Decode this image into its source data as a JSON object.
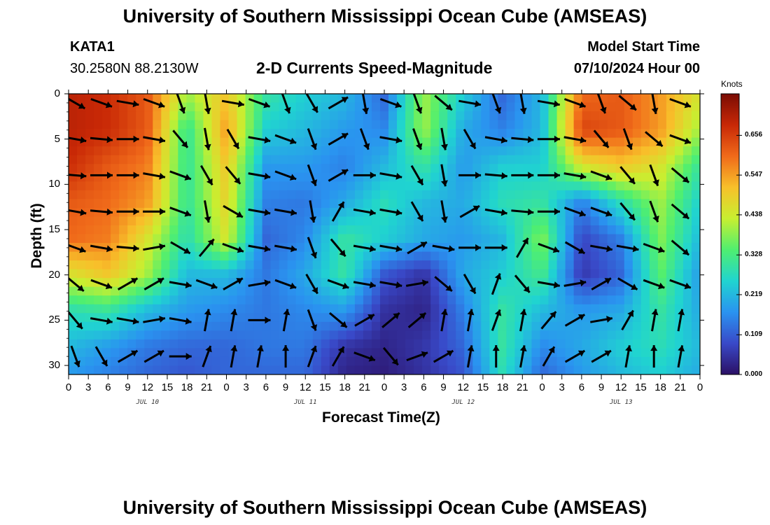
{
  "header": {
    "title": "University of Southern Mississippi Ocean Cube (AMSEAS)",
    "station": "KATA1",
    "coords": "30.2580N  88.2130W",
    "subtitle": "2-D Currents Speed-Magnitude",
    "model_label": "Model Start Time",
    "model_time": "07/10/2024 Hour 00"
  },
  "footer": {
    "title": "University of Southern Mississippi Ocean Cube (AMSEAS)"
  },
  "chart_data": {
    "type": "heatmap",
    "title": "2-D Currents Speed-Magnitude",
    "xlabel": "Forecast Time(Z)",
    "ylabel": "Depth (ft)",
    "x_tick_labels": [
      "0",
      "3",
      "6",
      "9",
      "12",
      "15",
      "18",
      "21",
      "0",
      "3",
      "6",
      "9",
      "12",
      "15",
      "18",
      "21",
      "0",
      "3",
      "6",
      "9",
      "12",
      "15",
      "18",
      "21",
      "0",
      "3",
      "6",
      "9",
      "12",
      "15",
      "18",
      "21",
      "0"
    ],
    "date_labels": [
      "JUL 10",
      "JUL 11",
      "JUL 12",
      "JUL 13"
    ],
    "y_ticks": [
      0,
      5,
      10,
      15,
      20,
      25,
      30
    ],
    "ylim": [
      0,
      31
    ],
    "x_hours_range": [
      0,
      96
    ],
    "colorbar": {
      "label": "Knots",
      "tick_labels": [
        "0.656",
        "0.547",
        "0.438",
        "0.328",
        "0.219",
        "0.109",
        "0.000"
      ],
      "ticks": [
        0.656,
        0.547,
        0.438,
        0.328,
        0.219,
        0.109,
        0.0
      ],
      "range": [
        0.0,
        0.77
      ],
      "colors": [
        "#2b1065",
        "#3949c8",
        "#2a93f0",
        "#20d4d0",
        "#4fef70",
        "#c8ef30",
        "#f8c02a",
        "#f06a1a",
        "#c82806",
        "#7a0c04"
      ]
    },
    "speed_grid_knots": {
      "depths_ft": [
        0,
        4,
        8,
        12,
        16,
        20,
        24,
        28,
        31
      ],
      "hours": [
        0,
        6,
        12,
        18,
        24,
        30,
        36,
        42,
        48,
        54,
        60,
        66,
        72,
        78,
        84,
        90,
        96
      ],
      "values": [
        [
          0.7,
          0.68,
          0.62,
          0.4,
          0.5,
          0.3,
          0.25,
          0.22,
          0.12,
          0.4,
          0.25,
          0.12,
          0.22,
          0.6,
          0.62,
          0.55,
          0.45
        ],
        [
          0.7,
          0.68,
          0.62,
          0.3,
          0.55,
          0.25,
          0.22,
          0.18,
          0.16,
          0.4,
          0.2,
          0.15,
          0.22,
          0.65,
          0.62,
          0.55,
          0.4
        ],
        [
          0.68,
          0.62,
          0.58,
          0.3,
          0.5,
          0.18,
          0.18,
          0.15,
          0.22,
          0.3,
          0.18,
          0.25,
          0.25,
          0.45,
          0.5,
          0.45,
          0.3
        ],
        [
          0.62,
          0.6,
          0.55,
          0.3,
          0.48,
          0.15,
          0.14,
          0.2,
          0.28,
          0.22,
          0.2,
          0.28,
          0.3,
          0.15,
          0.28,
          0.4,
          0.25
        ],
        [
          0.6,
          0.58,
          0.45,
          0.28,
          0.45,
          0.12,
          0.16,
          0.3,
          0.25,
          0.2,
          0.18,
          0.22,
          0.38,
          0.08,
          0.15,
          0.38,
          0.22
        ],
        [
          0.45,
          0.5,
          0.4,
          0.22,
          0.22,
          0.14,
          0.2,
          0.3,
          0.1,
          0.05,
          0.2,
          0.25,
          0.32,
          0.06,
          0.12,
          0.35,
          0.18
        ],
        [
          0.28,
          0.3,
          0.22,
          0.18,
          0.16,
          0.14,
          0.16,
          0.18,
          0.05,
          0.03,
          0.15,
          0.3,
          0.22,
          0.18,
          0.2,
          0.3,
          0.2
        ],
        [
          0.22,
          0.18,
          0.14,
          0.12,
          0.12,
          0.14,
          0.14,
          0.05,
          0.03,
          0.06,
          0.12,
          0.3,
          0.16,
          0.2,
          0.25,
          0.28,
          0.22
        ],
        [
          0.18,
          0.15,
          0.12,
          0.1,
          0.12,
          0.12,
          0.12,
          0.03,
          0.02,
          0.05,
          0.1,
          0.28,
          0.12,
          0.18,
          0.22,
          0.25,
          0.2
        ]
      ]
    },
    "vectors": {
      "depths_ft": [
        1,
        5,
        9,
        13,
        17,
        21,
        25,
        29
      ],
      "hours": [
        1,
        5,
        9,
        13,
        17,
        21,
        25,
        29,
        33,
        37,
        41,
        45,
        49,
        53,
        57,
        61,
        65,
        69,
        73,
        77,
        81,
        85,
        89,
        93
      ],
      "direction_deg": [
        [
          120,
          110,
          100,
          110,
          160,
          170,
          100,
          110,
          160,
          150,
          60,
          170,
          110,
          160,
          130,
          100,
          160,
          170,
          100,
          110,
          160,
          130,
          170,
          110
        ],
        [
          100,
          95,
          90,
          100,
          140,
          170,
          150,
          100,
          110,
          160,
          60,
          160,
          100,
          160,
          170,
          150,
          100,
          95,
          90,
          100,
          140,
          160,
          130,
          110
        ],
        [
          95,
          90,
          90,
          100,
          110,
          150,
          140,
          100,
          110,
          160,
          60,
          90,
          100,
          150,
          170,
          90,
          95,
          90,
          90,
          100,
          110,
          140,
          160,
          130
        ],
        [
          100,
          95,
          90,
          90,
          110,
          170,
          120,
          100,
          100,
          170,
          30,
          100,
          100,
          150,
          170,
          60,
          100,
          95,
          90,
          110,
          110,
          140,
          160,
          130
        ],
        [
          110,
          100,
          95,
          80,
          120,
          40,
          110,
          100,
          100,
          160,
          140,
          100,
          100,
          60,
          100,
          90,
          90,
          30,
          110,
          120,
          100,
          100,
          110,
          130
        ],
        [
          130,
          110,
          60,
          60,
          100,
          110,
          60,
          80,
          110,
          150,
          110,
          100,
          100,
          80,
          130,
          150,
          20,
          140,
          100,
          80,
          60,
          120,
          110,
          110
        ],
        [
          140,
          100,
          100,
          80,
          100,
          10,
          10,
          90,
          10,
          160,
          130,
          60,
          50,
          50,
          10,
          10,
          20,
          10,
          40,
          60,
          80,
          30,
          10,
          10
        ],
        [
          160,
          150,
          60,
          60,
          90,
          20,
          10,
          10,
          0,
          20,
          30,
          110,
          140,
          70,
          60,
          10,
          0,
          10,
          30,
          60,
          60,
          10,
          0,
          10
        ]
      ]
    }
  }
}
